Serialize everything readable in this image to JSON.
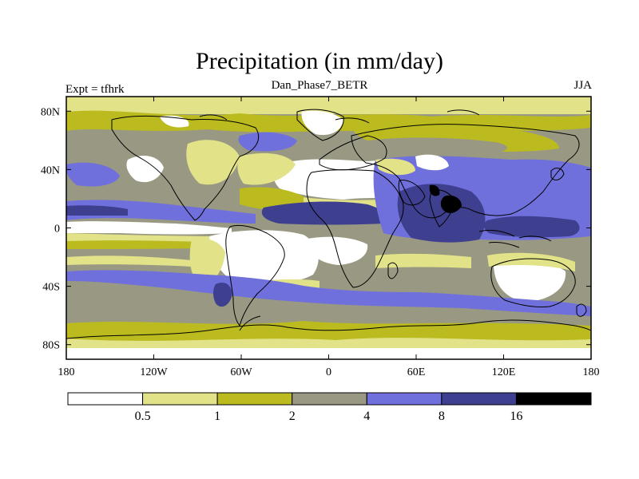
{
  "title": "Precipitation (in mm/day)",
  "subtitle": "Dan_Phase7_BETR",
  "left_subtitle": "Expt = tfhrk",
  "right_subtitle": "JJA",
  "map": {
    "projection": "cylindrical-equidistant",
    "lon_range": [
      -180,
      180
    ],
    "lat_range": [
      -90,
      90
    ],
    "x_ticks": [
      {
        "lon": -180,
        "label": "180"
      },
      {
        "lon": -120,
        "label": "120W"
      },
      {
        "lon": -60,
        "label": "60W"
      },
      {
        "lon": 0,
        "label": "0"
      },
      {
        "lon": 60,
        "label": "60E"
      },
      {
        "lon": 120,
        "label": "120E"
      },
      {
        "lon": 180,
        "label": "180"
      }
    ],
    "y_ticks": [
      {
        "lat": 80,
        "label": "80N"
      },
      {
        "lat": 40,
        "label": "40N"
      },
      {
        "lat": 0,
        "label": "0"
      },
      {
        "lat": -40,
        "label": "40S"
      },
      {
        "lat": -80,
        "label": "80S"
      }
    ]
  },
  "colorbar": {
    "colors": [
      "#ffffff",
      "#e2e289",
      "#bbbb20",
      "#999983",
      "#7070dc",
      "#3f3f8f",
      "#000000"
    ],
    "boundaries": [
      {
        "index": 1,
        "label": "0.5"
      },
      {
        "index": 2,
        "label": "1"
      },
      {
        "index": 3,
        "label": "2"
      },
      {
        "index": 4,
        "label": "4"
      },
      {
        "index": 5,
        "label": "8"
      },
      {
        "index": 6,
        "label": "16"
      }
    ]
  }
}
